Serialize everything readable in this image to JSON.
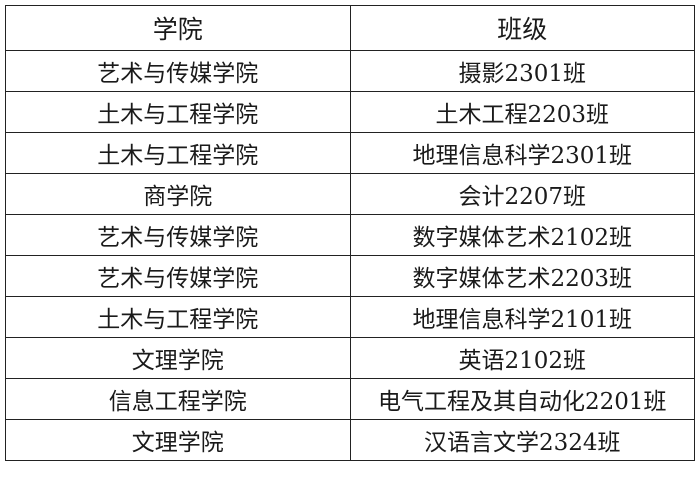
{
  "table": {
    "headers": [
      "学院",
      "班级"
    ],
    "rows": [
      [
        "艺术与传媒学院",
        "摄影2301班"
      ],
      [
        "土木与工程学院",
        "土木工程2203班"
      ],
      [
        "土木与工程学院",
        "地理信息科学2301班"
      ],
      [
        "商学院",
        "会计2207班"
      ],
      [
        "艺术与传媒学院",
        "数字媒体艺术2102班"
      ],
      [
        "艺术与传媒学院",
        "数字媒体艺术2203班"
      ],
      [
        "土木与工程学院",
        "地理信息科学2101班"
      ],
      [
        "文理学院",
        "英语2102班"
      ],
      [
        "信息工程学院",
        "电气工程及其自动化2201班"
      ],
      [
        "文理学院",
        "汉语言文学2324班"
      ]
    ]
  }
}
